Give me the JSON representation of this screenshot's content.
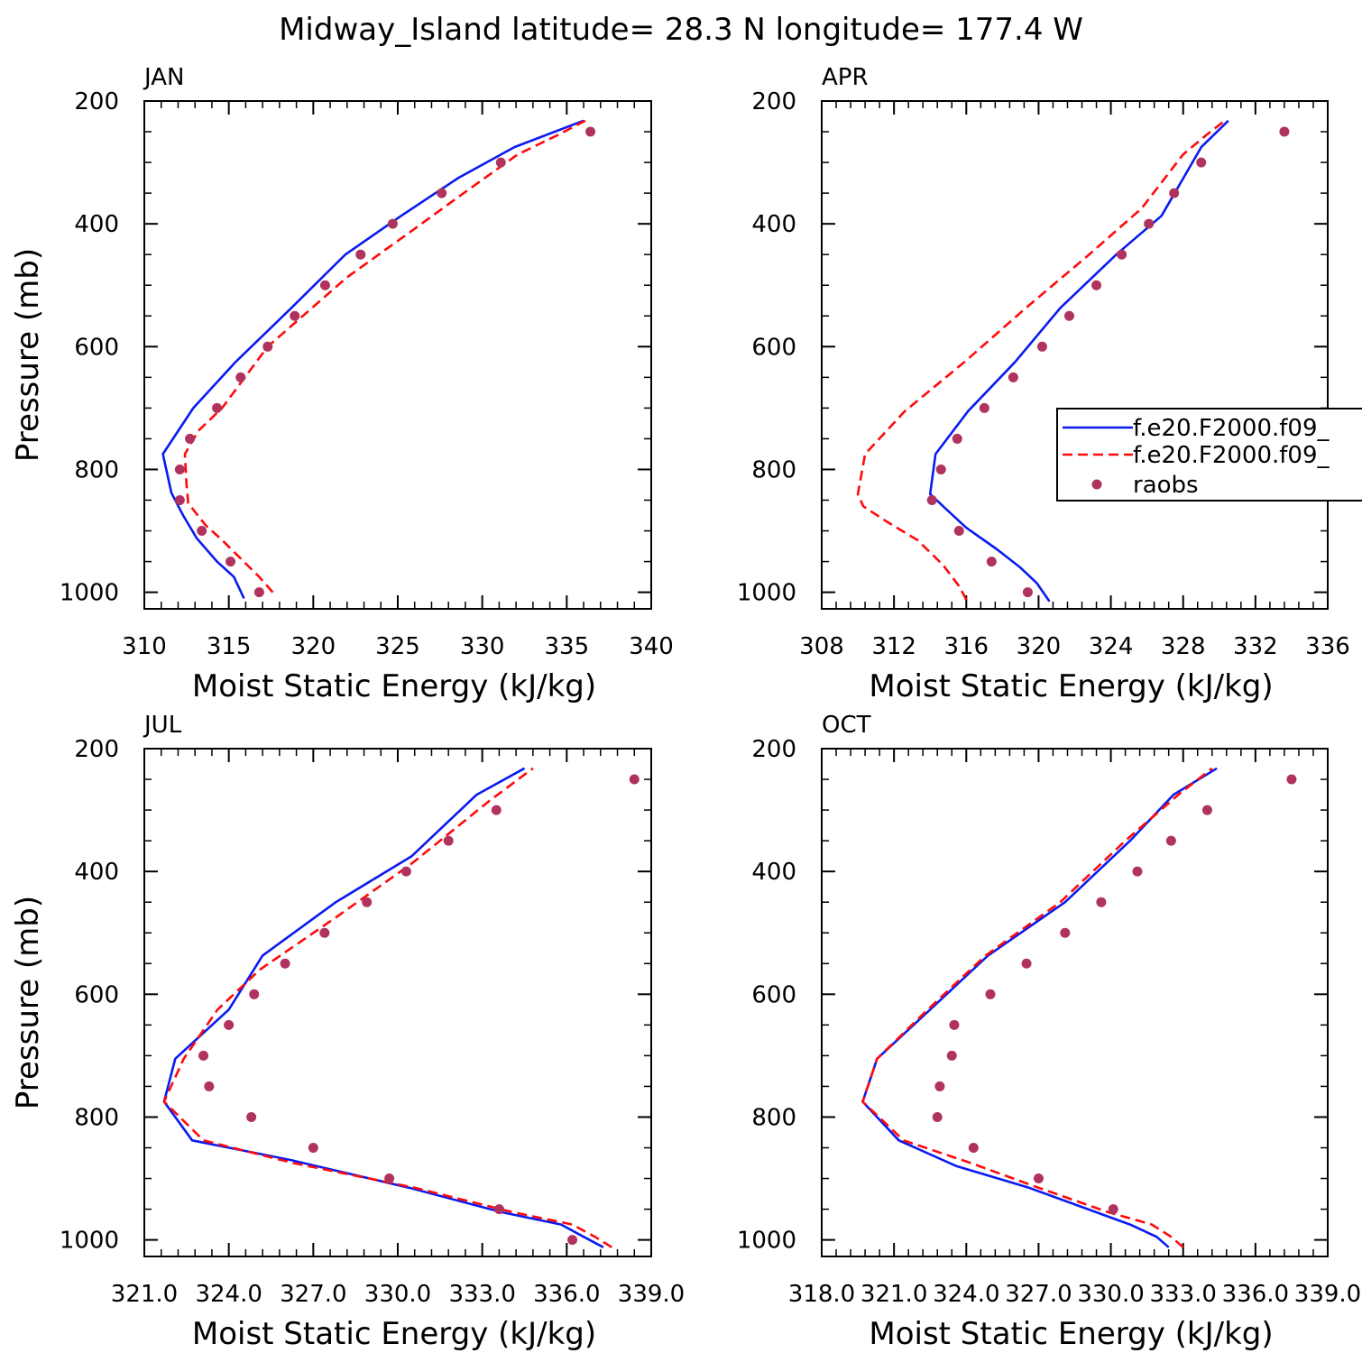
{
  "title": "Midway_Island   latitude= 28.3 N longitude= 177.4 W",
  "colors": {
    "model_a": "#0a1bef",
    "model_b": "#ff0a0a",
    "raobs": "#b0325e",
    "axes": "#000000"
  },
  "legend": {
    "placement": "right of APR panel",
    "entries": [
      "f.e20.F2000.f09_",
      "f.e20.F2000.f09_",
      "raobs"
    ]
  },
  "chart_data": [
    {
      "type": "line",
      "panel": "JAN",
      "xlabel": "Moist Static Energy (kJ/kg)",
      "ylabel": "Pressure (mb)",
      "xlim": [
        310,
        340
      ],
      "xticks": [
        310,
        315,
        320,
        325,
        330,
        335,
        340
      ],
      "xtick_labels": [
        "310",
        "315",
        "320",
        "325",
        "330",
        "335",
        "340"
      ],
      "ylim": [
        1000,
        200
      ],
      "yticks": [
        1000,
        800,
        600,
        400,
        200
      ],
      "ytick_labels": [
        "1000",
        "800",
        "600",
        "400",
        "200"
      ],
      "series": [
        {
          "name": "f.e20.F2000.f09_",
          "style": "solid",
          "points": [
            [
              315.9,
              1010
            ],
            [
              315.3,
              975
            ],
            [
              314.3,
              950
            ],
            [
              313.1,
              912
            ],
            [
              312.3,
              875
            ],
            [
              311.6,
              838
            ],
            [
              311.1,
              775
            ],
            [
              312.9,
              700
            ],
            [
              315.4,
              625
            ],
            [
              318.7,
              537
            ],
            [
              321.9,
              450
            ],
            [
              325.2,
              387
            ],
            [
              328.6,
              325
            ],
            [
              331.9,
              275
            ],
            [
              336.0,
              232
            ]
          ]
        },
        {
          "name": "f.e20.F2000.f09_",
          "style": "dashed",
          "points": [
            [
              317.6,
              1000
            ],
            [
              316.8,
              975
            ],
            [
              315.7,
              945
            ],
            [
              314.6,
              915
            ],
            [
              313.6,
              890
            ],
            [
              312.6,
              855
            ],
            [
              312.5,
              825
            ],
            [
              312.4,
              775
            ],
            [
              313.2,
              737
            ],
            [
              314.6,
              700
            ],
            [
              317.3,
              600
            ],
            [
              322.0,
              487
            ],
            [
              325.8,
              412
            ],
            [
              328.9,
              350
            ],
            [
              332.1,
              287
            ],
            [
              334.5,
              255
            ],
            [
              336.1,
              232
            ]
          ]
        },
        {
          "name": "raobs",
          "style": "dots",
          "points": [
            [
              316.8,
              1000
            ],
            [
              315.1,
              950
            ],
            [
              313.4,
              900
            ],
            [
              312.1,
              850
            ],
            [
              312.1,
              800
            ],
            [
              312.7,
              750
            ],
            [
              314.3,
              700
            ],
            [
              315.7,
              650
            ],
            [
              317.3,
              600
            ],
            [
              318.9,
              550
            ],
            [
              320.7,
              500
            ],
            [
              322.8,
              450
            ],
            [
              324.7,
              400
            ],
            [
              327.6,
              350
            ],
            [
              331.1,
              300
            ],
            [
              336.4,
              250
            ]
          ]
        }
      ]
    },
    {
      "type": "line",
      "panel": "APR",
      "xlabel": "Moist Static Energy (kJ/kg)",
      "ylabel": "",
      "xlim": [
        308,
        336
      ],
      "xticks": [
        308,
        312,
        316,
        320,
        324,
        328,
        332,
        336
      ],
      "xtick_labels": [
        "308",
        "312",
        "316",
        "320",
        "324",
        "328",
        "332",
        "336"
      ],
      "ylim": [
        1000,
        200
      ],
      "yticks": [
        1000,
        800,
        600,
        400,
        200
      ],
      "ytick_labels": [
        "1000",
        "800",
        "600",
        "400",
        "200"
      ],
      "series": [
        {
          "name": "f.e20.F2000.f09_",
          "style": "solid",
          "points": [
            [
              320.6,
              1015
            ],
            [
              319.9,
              985
            ],
            [
              319.0,
              960
            ],
            [
              317.7,
              930
            ],
            [
              316.0,
              895
            ],
            [
              314.9,
              865
            ],
            [
              314.0,
              840
            ],
            [
              314.3,
              775
            ],
            [
              316.1,
              705
            ],
            [
              318.7,
              625
            ],
            [
              321.2,
              537
            ],
            [
              324.3,
              450
            ],
            [
              326.8,
              387
            ],
            [
              329.0,
              275
            ],
            [
              330.5,
              232
            ]
          ]
        },
        {
          "name": "f.e20.F2000.f09_",
          "style": "dashed",
          "points": [
            [
              316.0,
              1012
            ],
            [
              315.6,
              990
            ],
            [
              314.7,
              955
            ],
            [
              313.3,
              915
            ],
            [
              311.6,
              885
            ],
            [
              310.3,
              860
            ],
            [
              310.0,
              840
            ],
            [
              310.4,
              775
            ],
            [
              312.6,
              705
            ],
            [
              315.9,
              625
            ],
            [
              319.3,
              537
            ],
            [
              322.8,
              450
            ],
            [
              325.7,
              375
            ],
            [
              328.0,
              287
            ],
            [
              329.3,
              255
            ],
            [
              330.3,
              232
            ]
          ]
        },
        {
          "name": "raobs",
          "style": "dots",
          "points": [
            [
              319.4,
              1000
            ],
            [
              317.4,
              950
            ],
            [
              315.6,
              900
            ],
            [
              314.1,
              850
            ],
            [
              314.6,
              800
            ],
            [
              315.5,
              750
            ],
            [
              317.0,
              700
            ],
            [
              318.6,
              650
            ],
            [
              320.2,
              600
            ],
            [
              321.7,
              550
            ],
            [
              323.2,
              500
            ],
            [
              324.6,
              450
            ],
            [
              326.1,
              400
            ],
            [
              327.5,
              350
            ],
            [
              329.0,
              300
            ],
            [
              333.6,
              250
            ]
          ]
        }
      ]
    },
    {
      "type": "line",
      "panel": "JUL",
      "xlabel": "Moist Static Energy (kJ/kg)",
      "ylabel": "Pressure (mb)",
      "xlim": [
        321,
        339
      ],
      "xticks": [
        321,
        324,
        327,
        330,
        333,
        336,
        339
      ],
      "xtick_labels": [
        "321.0",
        "324.0",
        "327.0",
        "330.0",
        "333.0",
        "336.0",
        "339.0"
      ],
      "ylim": [
        1000,
        200
      ],
      "yticks": [
        1000,
        800,
        600,
        400,
        200
      ],
      "ytick_labels": [
        "1000",
        "800",
        "600",
        "400",
        "200"
      ],
      "series": [
        {
          "name": "f.e20.F2000.f09_",
          "style": "solid",
          "points": [
            [
              337.3,
              1012
            ],
            [
              336.6,
              995
            ],
            [
              335.8,
              975
            ],
            [
              333.7,
              955
            ],
            [
              330.4,
              915
            ],
            [
              326.2,
              870
            ],
            [
              322.7,
              838
            ],
            [
              321.7,
              775
            ],
            [
              322.1,
              705
            ],
            [
              324.0,
              625
            ],
            [
              325.2,
              537
            ],
            [
              327.8,
              450
            ],
            [
              330.5,
              375
            ],
            [
              332.8,
              275
            ],
            [
              334.5,
              232
            ]
          ]
        },
        {
          "name": "f.e20.F2000.f09_",
          "style": "dashed",
          "points": [
            [
              337.6,
              1012
            ],
            [
              337.0,
              995
            ],
            [
              336.2,
              975
            ],
            [
              334.1,
              955
            ],
            [
              330.6,
              915
            ],
            [
              326.3,
              875
            ],
            [
              323.1,
              838
            ],
            [
              321.7,
              775
            ],
            [
              322.4,
              705
            ],
            [
              323.6,
              625
            ],
            [
              325.1,
              560
            ],
            [
              327.8,
              475
            ],
            [
              330.5,
              387
            ],
            [
              333.2,
              287
            ],
            [
              334.8,
              232
            ]
          ]
        },
        {
          "name": "raobs",
          "style": "dots",
          "points": [
            [
              336.2,
              1000
            ],
            [
              333.6,
              950
            ],
            [
              329.7,
              900
            ],
            [
              327.0,
              850
            ],
            [
              324.8,
              800
            ],
            [
              323.3,
              750
            ],
            [
              323.1,
              700
            ],
            [
              324.0,
              650
            ],
            [
              324.9,
              600
            ],
            [
              326.0,
              550
            ],
            [
              327.4,
              500
            ],
            [
              328.9,
              450
            ],
            [
              330.3,
              400
            ],
            [
              331.8,
              350
            ],
            [
              333.5,
              300
            ],
            [
              338.4,
              250
            ]
          ]
        }
      ]
    },
    {
      "type": "line",
      "panel": "OCT",
      "xlabel": "Moist Static Energy (kJ/kg)",
      "ylabel": "",
      "xlim": [
        318,
        339
      ],
      "xticks": [
        318,
        321,
        324,
        327,
        330,
        333,
        336,
        339
      ],
      "xtick_labels": [
        "318.0",
        "321.0",
        "324.0",
        "327.0",
        "330.0",
        "333.0",
        "336.0",
        "339.0"
      ],
      "ylim": [
        1000,
        200
      ],
      "yticks": [
        1000,
        800,
        600,
        400,
        200
      ],
      "ytick_labels": [
        "1000",
        "800",
        "600",
        "400",
        "200"
      ],
      "series": [
        {
          "name": "f.e20.F2000.f09_",
          "style": "solid",
          "points": [
            [
              332.4,
              1012
            ],
            [
              331.9,
              995
            ],
            [
              330.8,
              975
            ],
            [
              329.4,
              955
            ],
            [
              326.6,
              915
            ],
            [
              323.6,
              880
            ],
            [
              321.2,
              838
            ],
            [
              319.7,
              775
            ],
            [
              320.3,
              705
            ],
            [
              322.5,
              625
            ],
            [
              324.9,
              537
            ],
            [
              328.1,
              450
            ],
            [
              330.8,
              350
            ],
            [
              332.6,
              275
            ],
            [
              334.4,
              232
            ]
          ]
        },
        {
          "name": "f.e20.F2000.f09_",
          "style": "dashed",
          "points": [
            [
              333.0,
              1012
            ],
            [
              332.5,
              995
            ],
            [
              331.7,
              975
            ],
            [
              329.9,
              955
            ],
            [
              327.0,
              915
            ],
            [
              324.2,
              875
            ],
            [
              321.4,
              838
            ],
            [
              319.7,
              775
            ],
            [
              320.3,
              705
            ],
            [
              322.4,
              625
            ],
            [
              324.8,
              537
            ],
            [
              327.9,
              450
            ],
            [
              330.6,
              350
            ],
            [
              332.8,
              275
            ],
            [
              334.2,
              232
            ]
          ]
        },
        {
          "name": "raobs",
          "style": "dots",
          "points": [
            [
              330.1,
              950
            ],
            [
              327.0,
              900
            ],
            [
              324.3,
              850
            ],
            [
              322.8,
              800
            ],
            [
              322.9,
              750
            ],
            [
              323.4,
              700
            ],
            [
              323.5,
              650
            ],
            [
              325.0,
              600
            ],
            [
              326.5,
              550
            ],
            [
              328.1,
              500
            ],
            [
              329.6,
              450
            ],
            [
              331.1,
              400
            ],
            [
              332.5,
              350
            ],
            [
              334.0,
              300
            ],
            [
              337.5,
              250
            ]
          ]
        }
      ]
    }
  ]
}
